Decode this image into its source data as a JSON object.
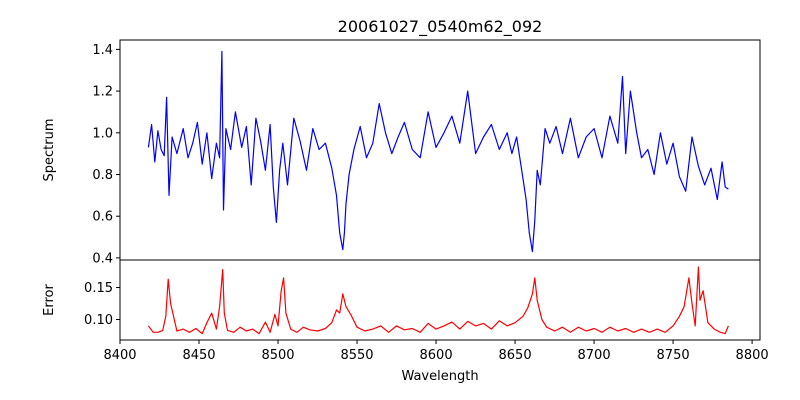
{
  "chart_data": {
    "title": "20061027_0540m62_092",
    "xlabel": "Wavelength",
    "xlim": [
      8400,
      8805
    ],
    "x_ticks": [
      "8400",
      "8450",
      "8500",
      "8550",
      "8600",
      "8650",
      "8700",
      "8750",
      "8800"
    ],
    "grid": false,
    "panels": [
      {
        "type": "line",
        "ylabel": "Spectrum",
        "ylim": [
          0.39,
          1.445
        ],
        "y_ticks": [
          "0.4",
          "0.6",
          "0.8",
          "1.0",
          "1.2",
          "1.4"
        ],
        "series": [
          {
            "color": "#0000ff",
            "x": [
              8418,
              8420,
              8422,
              8424,
              8426,
              8428,
              8429.5,
              8431,
              8433,
              8436,
              8440,
              8443,
              8446,
              8449,
              8452,
              8455,
              8458,
              8461,
              8463,
              8464.5,
              8465.5,
              8467,
              8470,
              8473,
              8477,
              8480,
              8483,
              8486,
              8489,
              8492,
              8495,
              8497,
              8499,
              8501,
              8503,
              8506,
              8510,
              8514,
              8518,
              8522,
              8526,
              8530,
              8534,
              8537,
              8539,
              8541,
              8542,
              8543,
              8545,
              8548,
              8552,
              8556,
              8560,
              8564,
              8568,
              8572,
              8576,
              8580,
              8585,
              8590,
              8595,
              8600,
              8605,
              8610,
              8615,
              8620,
              8625,
              8630,
              8635,
              8640,
              8645,
              8648,
              8651,
              8654,
              8657,
              8659,
              8661,
              8662.5,
              8664,
              8666,
              8669,
              8672,
              8676,
              8680,
              8685,
              8690,
              8695,
              8700,
              8705,
              8710,
              8715,
              8718,
              8720,
              8723,
              8727,
              8730,
              8734,
              8738,
              8742,
              8746,
              8750,
              8754,
              8758,
              8762,
              8766,
              8770,
              8774,
              8778,
              8781,
              8783,
              8785
            ],
            "y": [
              0.93,
              1.04,
              0.86,
              1.01,
              0.92,
              0.89,
              1.17,
              0.7,
              0.98,
              0.9,
              1.02,
              0.88,
              0.95,
              1.05,
              0.85,
              1.0,
              0.78,
              0.95,
              0.88,
              1.39,
              0.63,
              1.02,
              0.92,
              1.1,
              0.93,
              1.03,
              0.75,
              1.07,
              0.96,
              0.82,
              1.04,
              0.74,
              0.57,
              0.82,
              0.95,
              0.75,
              1.07,
              0.96,
              0.82,
              1.02,
              0.92,
              0.95,
              0.83,
              0.7,
              0.52,
              0.44,
              0.52,
              0.66,
              0.8,
              0.92,
              1.03,
              0.88,
              0.95,
              1.14,
              1.0,
              0.9,
              0.98,
              1.05,
              0.92,
              0.88,
              1.1,
              0.93,
              1.0,
              1.08,
              0.95,
              1.2,
              0.9,
              0.98,
              1.04,
              0.92,
              1.0,
              0.9,
              0.98,
              0.83,
              0.68,
              0.52,
              0.43,
              0.58,
              0.82,
              0.75,
              1.02,
              0.95,
              1.03,
              0.9,
              1.07,
              0.88,
              0.98,
              1.02,
              0.88,
              1.08,
              0.95,
              1.27,
              0.9,
              1.2,
              1.0,
              0.88,
              0.92,
              0.8,
              1.0,
              0.85,
              0.95,
              0.79,
              0.72,
              0.98,
              0.84,
              0.75,
              0.83,
              0.68,
              0.86,
              0.74,
              0.73
            ]
          }
        ]
      },
      {
        "type": "line",
        "ylabel": "Error",
        "ylim": [
          0.068,
          0.193
        ],
        "y_ticks": [
          "0.10",
          "0.15"
        ],
        "series": [
          {
            "color": "#ff0000",
            "x": [
              8418,
              8421,
              8424,
              8427,
              8429,
              8430.5,
              8432,
              8436,
              8440,
              8444,
              8448,
              8452,
              8455,
              8458,
              8461,
              8463,
              8465,
              8466,
              8468,
              8472,
              8476,
              8480,
              8484,
              8488,
              8492,
              8495,
              8498,
              8500,
              8502,
              8503.5,
              8505,
              8508,
              8512,
              8516,
              8520,
              8525,
              8530,
              8534,
              8537,
              8539,
              8541,
              8543,
              8546,
              8550,
              8555,
              8560,
              8565,
              8570,
              8575,
              8580,
              8585,
              8590,
              8595,
              8600,
              8605,
              8610,
              8615,
              8620,
              8625,
              8630,
              8635,
              8640,
              8645,
              8650,
              8655,
              8658,
              8661,
              8662.5,
              8664,
              8667,
              8670,
              8675,
              8680,
              8685,
              8690,
              8695,
              8700,
              8705,
              8710,
              8715,
              8720,
              8725,
              8730,
              8735,
              8740,
              8745,
              8750,
              8754,
              8757,
              8760,
              8762,
              8764,
              8766,
              8767,
              8769,
              8772,
              8776,
              8780,
              8783,
              8785
            ],
            "y": [
              0.09,
              0.08,
              0.08,
              0.083,
              0.105,
              0.163,
              0.125,
              0.082,
              0.085,
              0.08,
              0.086,
              0.078,
              0.095,
              0.11,
              0.085,
              0.12,
              0.178,
              0.11,
              0.083,
              0.08,
              0.088,
              0.082,
              0.085,
              0.078,
              0.096,
              0.08,
              0.108,
              0.09,
              0.145,
              0.165,
              0.11,
              0.085,
              0.08,
              0.088,
              0.084,
              0.082,
              0.086,
              0.095,
              0.115,
              0.11,
              0.14,
              0.12,
              0.108,
              0.088,
              0.082,
              0.085,
              0.09,
              0.08,
              0.09,
              0.084,
              0.086,
              0.08,
              0.094,
              0.085,
              0.09,
              0.096,
              0.085,
              0.097,
              0.09,
              0.094,
              0.085,
              0.098,
              0.09,
              0.095,
              0.105,
              0.118,
              0.14,
              0.165,
              0.13,
              0.1,
              0.088,
              0.082,
              0.088,
              0.08,
              0.088,
              0.082,
              0.086,
              0.08,
              0.088,
              0.082,
              0.086,
              0.08,
              0.085,
              0.08,
              0.085,
              0.08,
              0.09,
              0.105,
              0.12,
              0.165,
              0.125,
              0.09,
              0.182,
              0.13,
              0.145,
              0.095,
              0.085,
              0.08,
              0.078,
              0.09
            ]
          }
        ]
      }
    ]
  }
}
